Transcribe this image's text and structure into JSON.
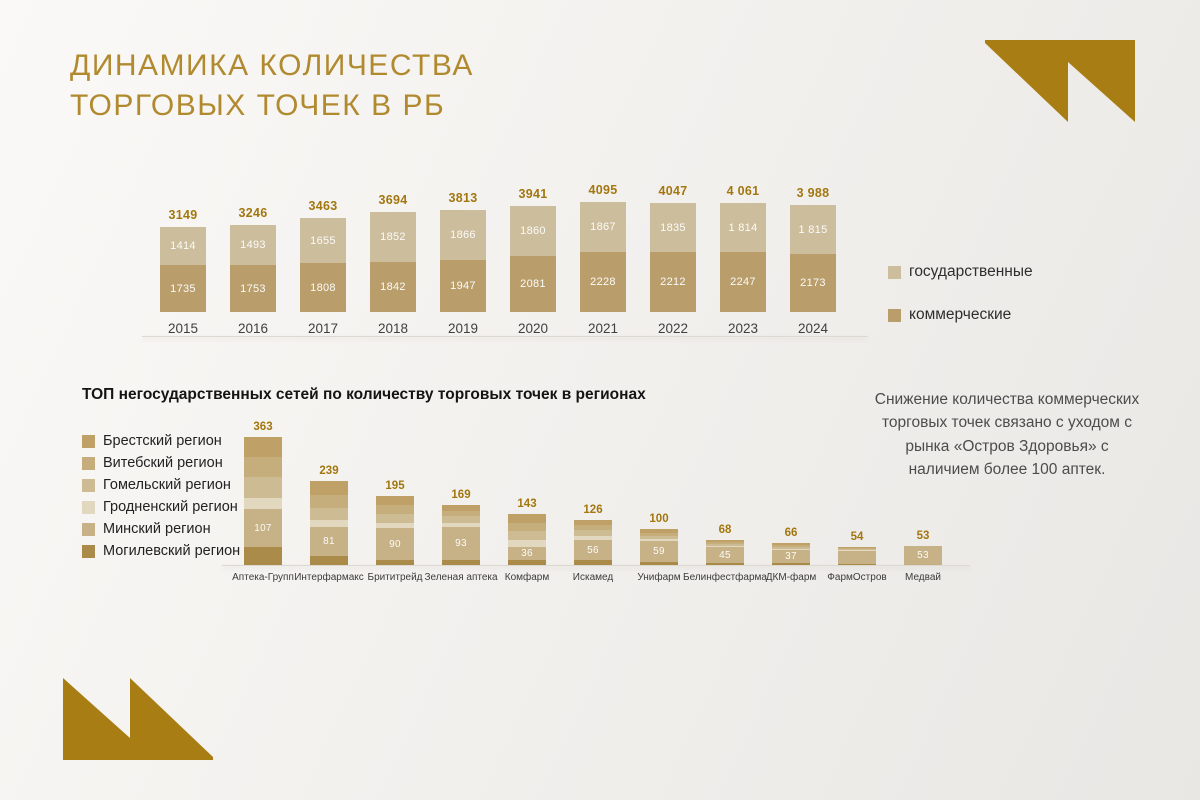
{
  "slide": {
    "title_line1": "ДИНАМИКА КОЛИЧЕСТВА",
    "title_line2": "ТОРГОВЫХ ТОЧЕК В РБ",
    "note": "Снижение количества коммерческих торговых точек связано с уходом с рынка «Остров Здоровья» с наличием более 100 аптек.",
    "colors": {
      "accent_gold": "#a87d14",
      "title_gold": "#b18a30",
      "total_label": "#a3770f"
    }
  },
  "chart_data": [
    {
      "id": "dynamics_by_year",
      "type": "bar",
      "stacked": true,
      "categories": [
        "2015",
        "2016",
        "2017",
        "2018",
        "2019",
        "2020",
        "2021",
        "2022",
        "2023",
        "2024"
      ],
      "series": [
        {
          "name": "коммерческие",
          "color": "#b99d6b",
          "values": [
            1735,
            1753,
            1808,
            1842,
            1947,
            2081,
            2228,
            2212,
            2247,
            2173
          ],
          "labels": [
            "1735",
            "1753",
            "1808",
            "1842",
            "1947",
            "2081",
            "2228",
            "2212",
            "2247",
            "2173"
          ]
        },
        {
          "name": "государственные",
          "color": "#ccbd9d",
          "values": [
            1414,
            1493,
            1655,
            1852,
            1866,
            1860,
            1867,
            1835,
            1814,
            1815
          ],
          "labels": [
            "1414",
            "1493",
            "1655",
            "1852",
            "1866",
            "1860",
            "1867",
            "1835",
            "1 814",
            "1 815"
          ]
        }
      ],
      "totals": [
        3149,
        3246,
        3463,
        3694,
        3813,
        3941,
        4095,
        4047,
        4061,
        3988
      ],
      "total_labels": [
        "3149",
        "3246",
        "3463",
        "3694",
        "3813",
        "3941",
        "4095",
        "4047",
        "4 061",
        "3 988"
      ],
      "legend": [
        {
          "label": "государственные",
          "color": "#ccbd9d"
        },
        {
          "label": "коммерческие",
          "color": "#b99d6b"
        }
      ],
      "legend_position": "right",
      "grid": false
    },
    {
      "id": "top_chains_by_region",
      "type": "bar",
      "stacked": true,
      "title": "ТОП негосударственных сетей по количеству торговых точек в регионах",
      "categories": [
        "Аптека-Групп",
        "Интерфармакс",
        "Брититрейд",
        "Зеленая аптека",
        "Комфарм",
        "Искамед",
        "Унифарм",
        "Белинфестфарма",
        "ДКМ-фарм",
        "ФармОстров",
        "Медвай"
      ],
      "totals": [
        363,
        239,
        195,
        169,
        143,
        126,
        100,
        68,
        66,
        54,
        53
      ],
      "total_labels": [
        "363",
        "239",
        "195",
        "169",
        "143",
        "126",
        "100",
        "68",
        "66",
        "54",
        "53"
      ],
      "regions": [
        {
          "name": "Брестский регион",
          "color": "#bfa067"
        },
        {
          "name": "Витебский регион",
          "color": "#c6ad7c"
        },
        {
          "name": "Гомельский регион",
          "color": "#cdbb93"
        },
        {
          "name": "Гродненский регион",
          "color": "#e2d8c0"
        },
        {
          "name": "Минский регион",
          "color": "#c7b186"
        },
        {
          "name": "Могилевский регион",
          "color": "#ab8b49"
        }
      ],
      "series": [
        {
          "name": "Брестский регион",
          "values": [
            57,
            40,
            25,
            18,
            25,
            15,
            10,
            5,
            7,
            4,
            0
          ]
        },
        {
          "name": "Витебский регион",
          "values": [
            56,
            38,
            25,
            15,
            22,
            14,
            8,
            5,
            6,
            3,
            0
          ]
        },
        {
          "name": "Гомельский регион",
          "values": [
            60,
            35,
            25,
            20,
            25,
            16,
            9,
            5,
            6,
            4,
            0
          ]
        },
        {
          "name": "Гродненский регион",
          "values": [
            32,
            20,
            15,
            10,
            20,
            12,
            6,
            3,
            4,
            2,
            0
          ]
        },
        {
          "name": "Минский регион",
          "values": [
            107,
            81,
            90,
            93,
            36,
            56,
            59,
            45,
            37,
            38,
            53
          ]
        },
        {
          "name": "Могилевский регион",
          "values": [
            51,
            25,
            15,
            13,
            15,
            13,
            8,
            5,
            6,
            3,
            0
          ]
        }
      ],
      "minsk_segment_labels": [
        "107",
        "81",
        "90",
        "93",
        "36",
        "56",
        "59",
        "45",
        "37",
        "",
        "53"
      ],
      "stack_order_bottom_to_top": [
        "Могилевский регион",
        "Минский регион",
        "Гродненский регион",
        "Гомельский регион",
        "Витебский регион",
        "Брестский регион"
      ],
      "legend_position": "left",
      "grid": false
    }
  ]
}
